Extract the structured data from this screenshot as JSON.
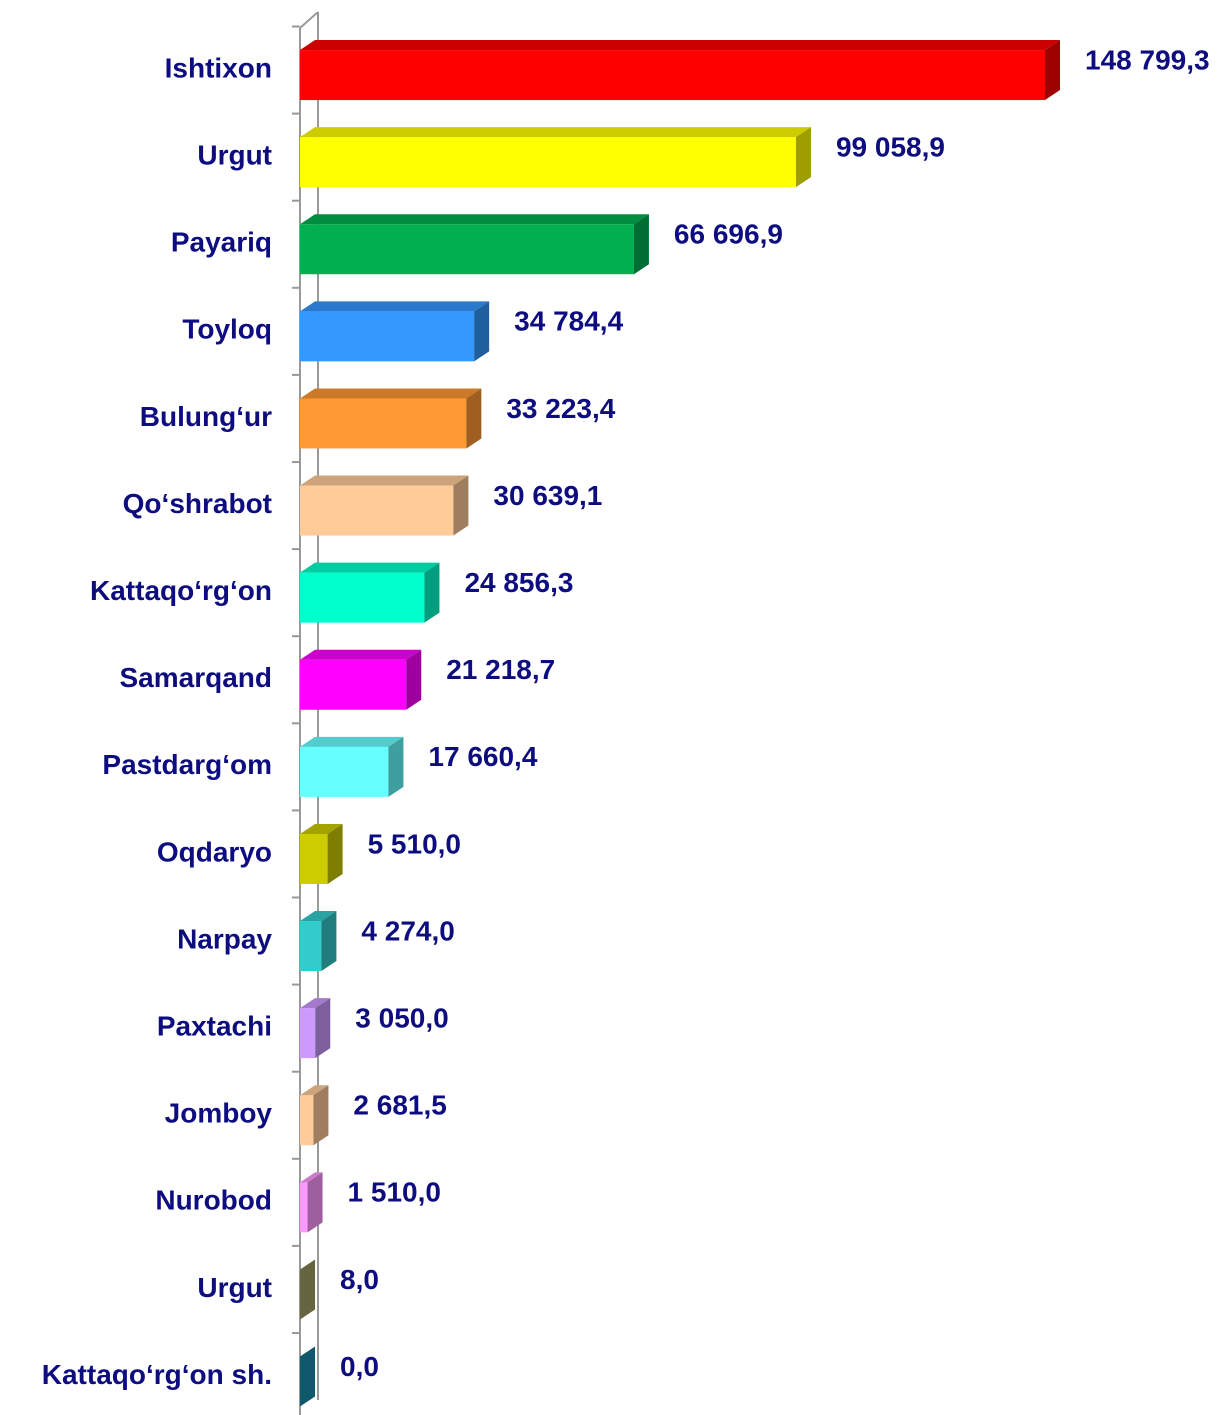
{
  "chart_data": {
    "type": "bar",
    "orientation": "horizontal",
    "three_d": true,
    "categories": [
      "Ishtixon",
      "Urgut",
      "Payariq",
      "Toyloq",
      "Bulung‘ur",
      "Qo‘shrabot",
      "Kattaqo‘rg‘on",
      "Samarqand",
      "Pastdarg‘om",
      "Oqdaryo",
      "Narpay",
      "Paxtachi",
      "Jomboy",
      "Nurobod",
      "Urgut",
      "Kattaqo‘rg‘on sh."
    ],
    "values": [
      148799.3,
      99058.9,
      66696.9,
      34784.4,
      33223.4,
      30639.1,
      24856.3,
      21218.7,
      17660.4,
      5510.0,
      4274.0,
      3050.0,
      2681.5,
      1510.0,
      8.0,
      0.0
    ],
    "value_labels": [
      "148 799,3",
      "99 058,9",
      "66 696,9",
      "34 784,4",
      "33 223,4",
      "30 639,1",
      "24 856,3",
      "21 218,7",
      "17 660,4",
      "5 510,0",
      "4 274,0",
      "3 050,0",
      "2 681,5",
      "1 510,0",
      "8,0",
      "0,0"
    ],
    "colors": [
      "#ff0000",
      "#ffff00",
      "#00b050",
      "#3399ff",
      "#ff9933",
      "#ffcc99",
      "#00ffcc",
      "#ff00ff",
      "#66ffff",
      "#cccc00",
      "#33cccc",
      "#cc99ff",
      "#ffcc99",
      "#ff99ff",
      "#a3a36b",
      "#1a8fb0"
    ]
  }
}
